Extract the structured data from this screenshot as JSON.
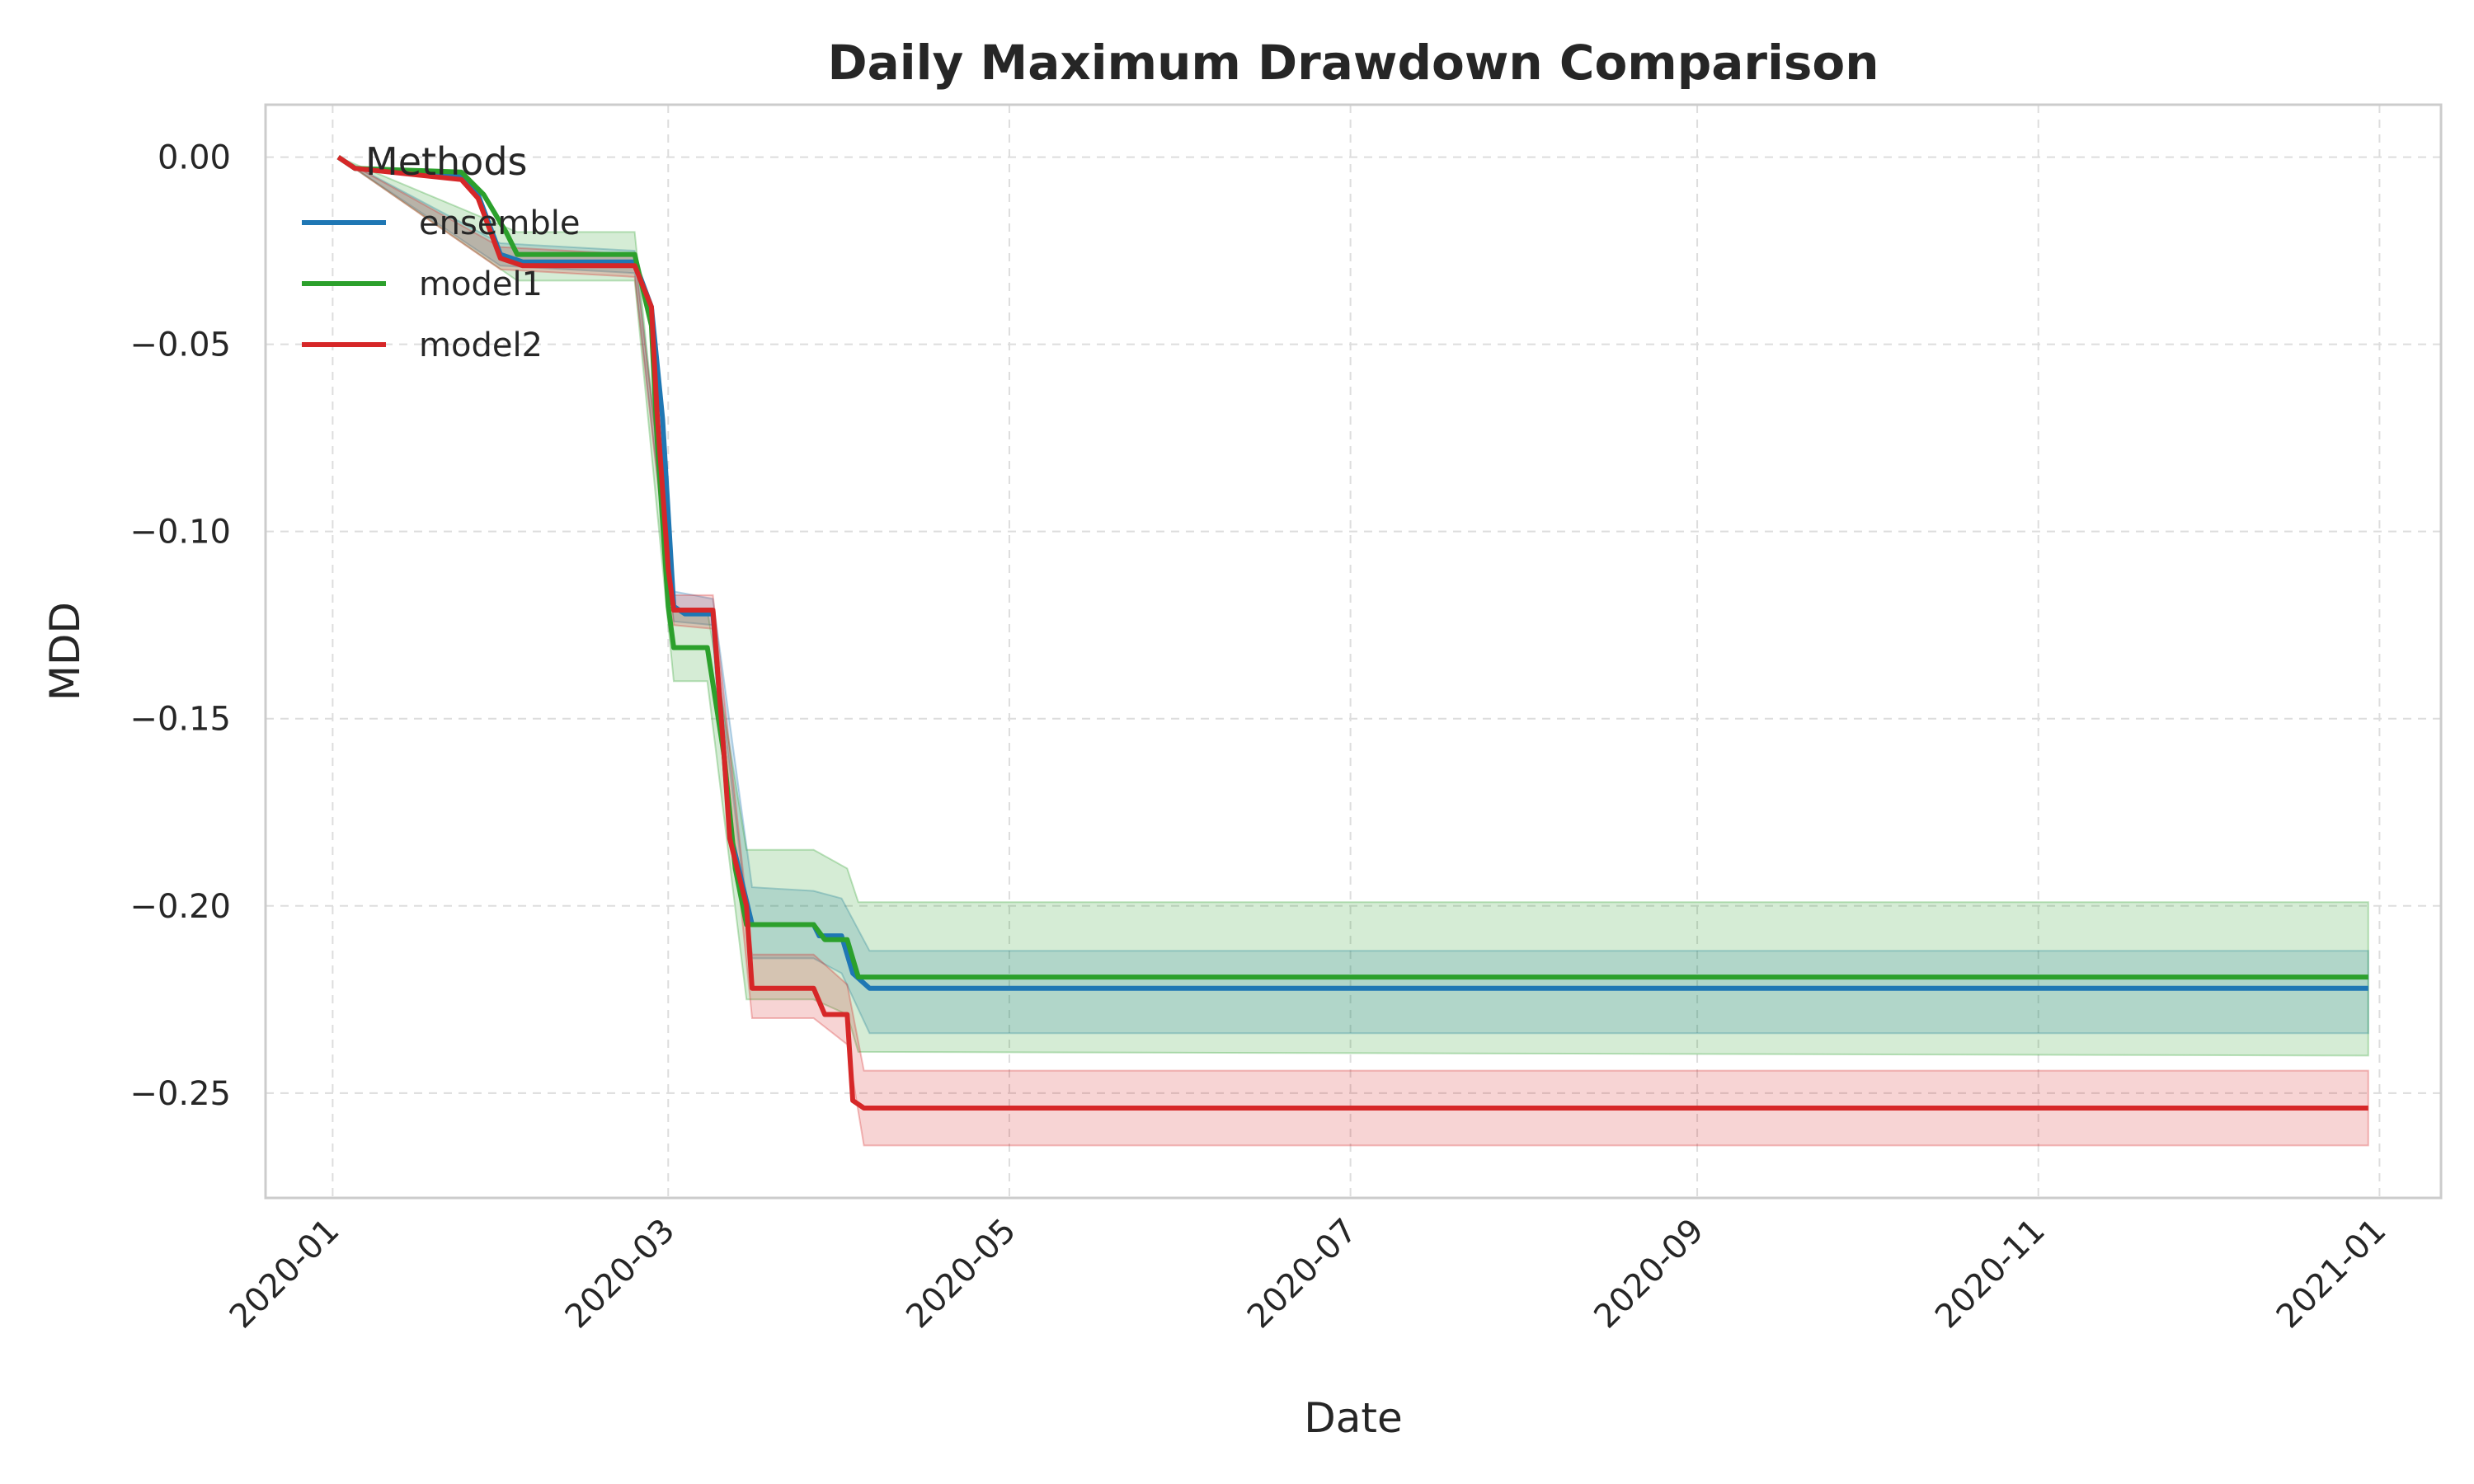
{
  "chart_data": {
    "type": "line",
    "title": "Daily Maximum Drawdown Comparison",
    "xlabel": "Date",
    "ylabel": "MDD",
    "xlim": [
      "2019-12-20",
      "2021-01-12"
    ],
    "ylim": [
      -0.278,
      0.014
    ],
    "x_ticks": [
      "2020-01",
      "2020-03",
      "2020-05",
      "2020-07",
      "2020-09",
      "2020-11",
      "2021-01"
    ],
    "y_ticks": [
      0.0,
      -0.05,
      -0.1,
      -0.15,
      -0.2,
      -0.25
    ],
    "y_tick_labels": [
      "0.00",
      "−0.05",
      "−0.10",
      "−0.15",
      "−0.20",
      "−0.25"
    ],
    "grid": true,
    "legend": {
      "title": "Methods",
      "placement": "upper-left"
    },
    "series": [
      {
        "name": "ensemble",
        "color": "#1f77b4",
        "band_color": "#1f77b4",
        "points": [
          [
            "2020-01-02",
            0.0
          ],
          [
            "2020-01-05",
            -0.003
          ],
          [
            "2020-01-24",
            -0.005
          ],
          [
            "2020-01-27",
            -0.01
          ],
          [
            "2020-01-31",
            -0.026
          ],
          [
            "2020-02-04",
            -0.028
          ],
          [
            "2020-02-24",
            -0.028
          ],
          [
            "2020-02-27",
            -0.04
          ],
          [
            "2020-02-29",
            -0.07
          ],
          [
            "2020-03-02",
            -0.12
          ],
          [
            "2020-03-04",
            -0.122
          ],
          [
            "2020-03-09",
            -0.122
          ],
          [
            "2020-03-11",
            -0.16
          ],
          [
            "2020-03-12",
            -0.18
          ],
          [
            "2020-03-16",
            -0.205
          ],
          [
            "2020-03-27",
            -0.205
          ],
          [
            "2020-03-28",
            -0.208
          ],
          [
            "2020-04-01",
            -0.208
          ],
          [
            "2020-04-03",
            -0.218
          ],
          [
            "2020-04-06",
            -0.222
          ],
          [
            "2020-12-30",
            -0.222
          ]
        ],
        "band": [
          [
            "2020-01-02",
            0.0,
            0.0
          ],
          [
            "2020-01-31",
            -0.029,
            -0.023
          ],
          [
            "2020-02-24",
            -0.031,
            -0.025
          ],
          [
            "2020-03-02",
            -0.124,
            -0.116
          ],
          [
            "2020-03-09",
            -0.125,
            -0.118
          ],
          [
            "2020-03-16",
            -0.214,
            -0.195
          ],
          [
            "2020-03-27",
            -0.214,
            -0.196
          ],
          [
            "2020-04-01",
            -0.218,
            -0.198
          ],
          [
            "2020-04-06",
            -0.234,
            -0.212
          ],
          [
            "2020-12-30",
            -0.234,
            -0.212
          ]
        ]
      },
      {
        "name": "model1",
        "color": "#2ca02c",
        "band_color": "#2ca02c",
        "points": [
          [
            "2020-01-02",
            0.0
          ],
          [
            "2020-01-05",
            -0.003
          ],
          [
            "2020-01-24",
            -0.004
          ],
          [
            "2020-01-28",
            -0.01
          ],
          [
            "2020-02-01",
            -0.02
          ],
          [
            "2020-02-03",
            -0.026
          ],
          [
            "2020-02-24",
            -0.026
          ],
          [
            "2020-02-27",
            -0.045
          ],
          [
            "2020-02-28",
            -0.075
          ],
          [
            "2020-03-01",
            -0.12
          ],
          [
            "2020-03-02",
            -0.131
          ],
          [
            "2020-03-08",
            -0.131
          ],
          [
            "2020-03-11",
            -0.16
          ],
          [
            "2020-03-13",
            -0.19
          ],
          [
            "2020-03-15",
            -0.205
          ],
          [
            "2020-03-27",
            -0.205
          ],
          [
            "2020-03-29",
            -0.209
          ],
          [
            "2020-04-02",
            -0.209
          ],
          [
            "2020-04-04",
            -0.219
          ],
          [
            "2020-12-30",
            -0.219
          ]
        ],
        "band": [
          [
            "2020-01-02",
            0.0,
            0.0
          ],
          [
            "2020-02-03",
            -0.033,
            -0.02
          ],
          [
            "2020-02-24",
            -0.033,
            -0.02
          ],
          [
            "2020-03-02",
            -0.14,
            -0.121
          ],
          [
            "2020-03-08",
            -0.14,
            -0.121
          ],
          [
            "2020-03-15",
            -0.225,
            -0.185
          ],
          [
            "2020-03-27",
            -0.225,
            -0.185
          ],
          [
            "2020-04-02",
            -0.229,
            -0.19
          ],
          [
            "2020-04-04",
            -0.239,
            -0.199
          ],
          [
            "2020-12-30",
            -0.24,
            -0.199
          ]
        ]
      },
      {
        "name": "model2",
        "color": "#d62728",
        "band_color": "#d62728",
        "points": [
          [
            "2020-01-02",
            0.0
          ],
          [
            "2020-01-05",
            -0.003
          ],
          [
            "2020-01-24",
            -0.006
          ],
          [
            "2020-01-27",
            -0.011
          ],
          [
            "2020-01-31",
            -0.027
          ],
          [
            "2020-02-04",
            -0.029
          ],
          [
            "2020-02-24",
            -0.029
          ],
          [
            "2020-02-27",
            -0.04
          ],
          [
            "2020-02-28",
            -0.068
          ],
          [
            "2020-03-01",
            -0.11
          ],
          [
            "2020-03-02",
            -0.121
          ],
          [
            "2020-03-09",
            -0.121
          ],
          [
            "2020-03-11",
            -0.16
          ],
          [
            "2020-03-12",
            -0.182
          ],
          [
            "2020-03-15",
            -0.2
          ],
          [
            "2020-03-16",
            -0.222
          ],
          [
            "2020-03-27",
            -0.222
          ],
          [
            "2020-03-29",
            -0.229
          ],
          [
            "2020-04-02",
            -0.229
          ],
          [
            "2020-04-03",
            -0.252
          ],
          [
            "2020-04-05",
            -0.254
          ],
          [
            "2020-12-30",
            -0.254
          ]
        ],
        "band": [
          [
            "2020-01-02",
            0.0,
            0.0
          ],
          [
            "2020-01-31",
            -0.03,
            -0.024
          ],
          [
            "2020-02-24",
            -0.032,
            -0.026
          ],
          [
            "2020-03-02",
            -0.125,
            -0.117
          ],
          [
            "2020-03-09",
            -0.126,
            -0.117
          ],
          [
            "2020-03-16",
            -0.23,
            -0.213
          ],
          [
            "2020-03-27",
            -0.23,
            -0.213
          ],
          [
            "2020-04-02",
            -0.237,
            -0.221
          ],
          [
            "2020-04-05",
            -0.264,
            -0.244
          ],
          [
            "2020-12-30",
            -0.264,
            -0.244
          ]
        ]
      }
    ]
  }
}
